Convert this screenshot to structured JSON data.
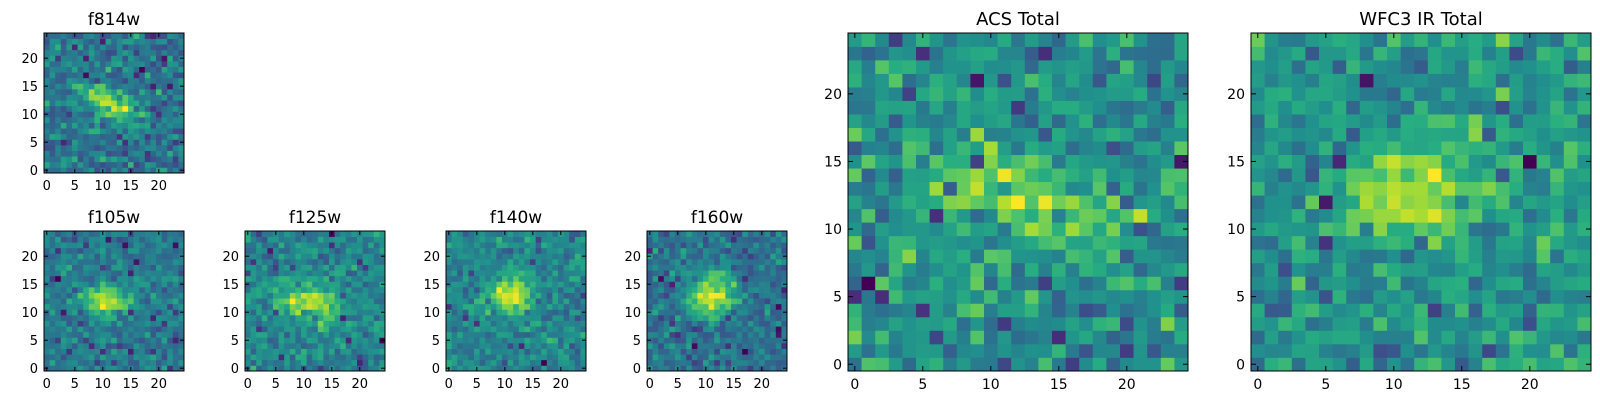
{
  "chart_data": [
    {
      "id": "f814w",
      "type": "heatmap",
      "title": "f814w",
      "pixels": 25,
      "xlim": [
        -0.5,
        24.5
      ],
      "ylim": [
        -0.5,
        24.5
      ],
      "xticks": [
        0,
        5,
        10,
        15,
        20
      ],
      "xtick_labels": [
        "0",
        "5",
        "10",
        "15",
        "20"
      ],
      "yticks": [
        0,
        5,
        10,
        15,
        20
      ],
      "ytick_labels": [
        "0",
        "5",
        "10",
        "15",
        "20"
      ],
      "colormap": "viridis",
      "source": {
        "center": [
          11,
          12
        ],
        "sigma": [
          3.6,
          1.6
        ],
        "angle_deg": -30,
        "peak": 0.95
      },
      "noise": 0.2,
      "background": 0.4,
      "seed": 11
    },
    {
      "id": "f105w",
      "type": "heatmap",
      "title": "f105w",
      "pixels": 25,
      "xlim": [
        -0.5,
        24.5
      ],
      "ylim": [
        -0.5,
        24.5
      ],
      "xticks": [
        0,
        5,
        10,
        15,
        20
      ],
      "xtick_labels": [
        "0",
        "5",
        "10",
        "15",
        "20"
      ],
      "yticks": [
        0,
        5,
        10,
        15,
        20
      ],
      "ytick_labels": [
        "0",
        "5",
        "10",
        "15",
        "20"
      ],
      "colormap": "viridis",
      "source": {
        "center": [
          11,
          12
        ],
        "sigma": [
          3.2,
          2.0
        ],
        "angle_deg": -10,
        "peak": 0.8
      },
      "noise": 0.14,
      "background": 0.45,
      "seed": 23
    },
    {
      "id": "f125w",
      "type": "heatmap",
      "title": "f125w",
      "pixels": 25,
      "xlim": [
        -0.5,
        24.5
      ],
      "ylim": [
        -0.5,
        24.5
      ],
      "xticks": [
        0,
        5,
        10,
        15,
        20
      ],
      "xtick_labels": [
        "0",
        "5",
        "10",
        "15",
        "20"
      ],
      "yticks": [
        0,
        5,
        10,
        15,
        20
      ],
      "ytick_labels": [
        "0",
        "5",
        "10",
        "15",
        "20"
      ],
      "colormap": "viridis",
      "source": {
        "center": [
          11,
          12
        ],
        "sigma": [
          4.0,
          2.2
        ],
        "angle_deg": -15,
        "peak": 0.75
      },
      "noise": 0.15,
      "background": 0.55,
      "seed": 37
    },
    {
      "id": "f140w",
      "type": "heatmap",
      "title": "f140w",
      "pixels": 25,
      "xlim": [
        -0.5,
        24.5
      ],
      "ylim": [
        -0.5,
        24.5
      ],
      "xticks": [
        0,
        5,
        10,
        15,
        20
      ],
      "xtick_labels": [
        "0",
        "5",
        "10",
        "15",
        "20"
      ],
      "yticks": [
        0,
        5,
        10,
        15,
        20
      ],
      "ytick_labels": [
        "0",
        "5",
        "10",
        "15",
        "20"
      ],
      "colormap": "viridis",
      "source": {
        "center": [
          11,
          13
        ],
        "sigma": [
          3.0,
          2.4
        ],
        "angle_deg": 0,
        "peak": 0.8
      },
      "noise": 0.16,
      "background": 0.45,
      "seed": 41
    },
    {
      "id": "f160w",
      "type": "heatmap",
      "title": "f160w",
      "pixels": 25,
      "xlim": [
        -0.5,
        24.5
      ],
      "ylim": [
        -0.5,
        24.5
      ],
      "xticks": [
        0,
        5,
        10,
        15,
        20
      ],
      "xtick_labels": [
        "0",
        "5",
        "10",
        "15",
        "20"
      ],
      "yticks": [
        0,
        5,
        10,
        15,
        20
      ],
      "ytick_labels": [
        "0",
        "5",
        "10",
        "15",
        "20"
      ],
      "colormap": "viridis",
      "source": {
        "center": [
          11,
          13
        ],
        "sigma": [
          2.8,
          2.6
        ],
        "angle_deg": 0,
        "peak": 0.85
      },
      "noise": 0.14,
      "background": 0.4,
      "seed": 53
    },
    {
      "id": "acs",
      "type": "heatmap",
      "title": "ACS Total",
      "pixels": 25,
      "xlim": [
        -0.5,
        24.5
      ],
      "ylim": [
        -0.5,
        24.5
      ],
      "xticks": [
        0,
        5,
        10,
        15,
        20
      ],
      "xtick_labels": [
        "0",
        "5",
        "10",
        "15",
        "20"
      ],
      "yticks": [
        0,
        5,
        10,
        15,
        20
      ],
      "ytick_labels": [
        "0",
        "5",
        "10",
        "15",
        "20"
      ],
      "colormap": "viridis",
      "source": {
        "center": [
          12,
          12.5
        ],
        "sigma": [
          4.2,
          1.8
        ],
        "angle_deg": -22,
        "peak": 0.5
      },
      "noise": 0.16,
      "background": 0.5,
      "seed": 67
    },
    {
      "id": "wfc3",
      "type": "heatmap",
      "title": "WFC3 IR Total",
      "pixels": 25,
      "xlim": [
        -0.5,
        24.5
      ],
      "ylim": [
        -0.5,
        24.5
      ],
      "xticks": [
        0,
        5,
        10,
        15,
        20
      ],
      "xtick_labels": [
        "0",
        "5",
        "10",
        "15",
        "20"
      ],
      "yticks": [
        0,
        5,
        10,
        15,
        20
      ],
      "ytick_labels": [
        "0",
        "5",
        "10",
        "15",
        "20"
      ],
      "colormap": "viridis",
      "source": {
        "center": [
          11.5,
          13
        ],
        "sigma": [
          3.4,
          2.4
        ],
        "angle_deg": -5,
        "peak": 0.5
      },
      "noise": 0.14,
      "background": 0.52,
      "seed": 79
    }
  ],
  "colors": {
    "frame": "#000000",
    "background": "#ffffff"
  }
}
